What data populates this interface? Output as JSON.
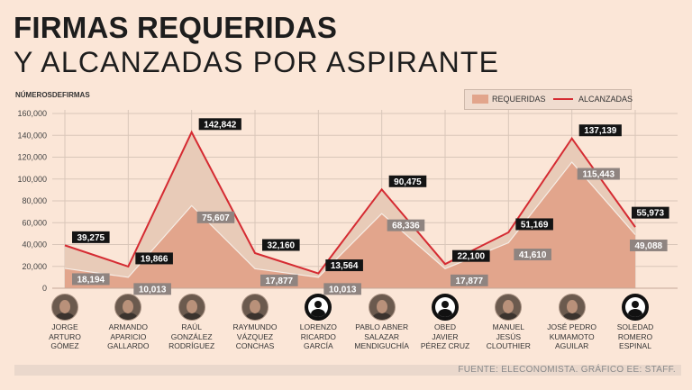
{
  "title_line1": "FIRMAS REQUERIDAS",
  "title_line2": "Y ALCANZADAS POR ASPIRANTE",
  "source": "FUENTE: ELECONOMISTA. GRÁFICO EE: STAFF.",
  "colors": {
    "requeridas": "#e2a58c",
    "alcanzadas": "#d52b32",
    "grid": "#d9c6b9",
    "background": "#fbe6d7"
  },
  "chart_data": {
    "type": "area",
    "ylabel": "NÚMEROSDEFIRMAS",
    "ylim": [
      0,
      160000
    ],
    "yticks": [
      0,
      20000,
      40000,
      60000,
      80000,
      100000,
      120000,
      140000,
      160000
    ],
    "ytick_labels": [
      "0",
      "20,000",
      "40,000",
      "60,000",
      "80,000",
      "100,000",
      "120,000",
      "140,000",
      "160,000"
    ],
    "legend_position": "top-right",
    "categories": [
      "Jorge Arturo Gómez",
      "Armando Aparicio Gallardo",
      "Raúl González Rodríguez",
      "Raymundo Vázquez Conchas",
      "Lorenzo Ricardo García",
      "Pablo Abner Salazar Mendiguchía",
      "Obed Javier Pérez Cruz",
      "Manuel Jesús Clouthier",
      "José Pedro Kumamoto Aguilar",
      "Soledad Romero Espinal"
    ],
    "series": [
      {
        "name": "REQUERIDAS",
        "type": "area",
        "values": [
          18194,
          10013,
          75607,
          17877,
          10013,
          68336,
          17877,
          41610,
          115443,
          49088
        ],
        "labels": [
          "18,194",
          "10,013",
          "75,607",
          "17,877",
          "10,013",
          "68,336",
          "17,877",
          "41,610",
          "115,443",
          "49,088"
        ]
      },
      {
        "name": "ALCANZADAS",
        "type": "line",
        "values": [
          39275,
          19866,
          142842,
          32160,
          13564,
          90475,
          22100,
          51169,
          137139,
          55973
        ],
        "labels": [
          "39,275",
          "19,866",
          "142,842",
          "32,160",
          "13,564",
          "90,475",
          "22,100",
          "51,169",
          "137,139",
          "55,973"
        ]
      }
    ]
  },
  "candidates": [
    {
      "name": "Jorge\nArturo\nGómez",
      "avatar": "photo"
    },
    {
      "name": "Armando\nAparicio\nGallardo",
      "avatar": "photo"
    },
    {
      "name": "Raúl\nGonzález\nRodríguez",
      "avatar": "photo"
    },
    {
      "name": "Raymundo\nVázquez\nConchas",
      "avatar": "photo"
    },
    {
      "name": "Lorenzo\nRicardo\nGarcía",
      "avatar": "placeholder"
    },
    {
      "name": "Pablo Abner\nSalazar\nMendiguchía",
      "avatar": "photo"
    },
    {
      "name": "Obed\nJavier\nPérez Cruz",
      "avatar": "placeholder"
    },
    {
      "name": "Manuel\nJesús\nClouthier",
      "avatar": "photo"
    },
    {
      "name": "José Pedro\nKumamoto\nAguilar",
      "avatar": "photo"
    },
    {
      "name": "Soledad\nRomero\nEspinal",
      "avatar": "placeholder"
    }
  ]
}
